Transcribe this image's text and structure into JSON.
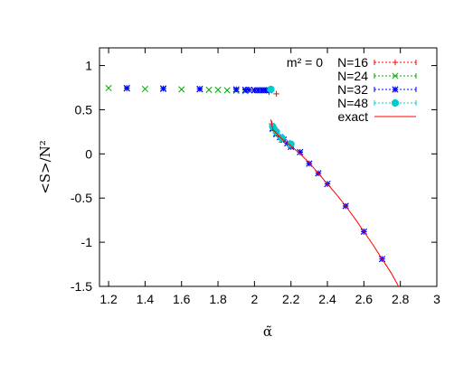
{
  "chart_data": {
    "type": "scatter",
    "xlabel": "α̃",
    "ylabel": "<S>/N²",
    "xlim": [
      1.15,
      3.0
    ],
    "ylim": [
      -1.5,
      1.2
    ],
    "x_ticks": [
      "1.2",
      "1.4",
      "1.6",
      "1.8",
      "2",
      "2.2",
      "2.4",
      "2.6",
      "2.8",
      "3"
    ],
    "x_tick_values": [
      1.2,
      1.4,
      1.6,
      1.8,
      2.0,
      2.2,
      2.4,
      2.6,
      2.8,
      3.0
    ],
    "y_ticks": [
      "1",
      "0.5",
      "0",
      "-0.5",
      "-1",
      "-1.5"
    ],
    "y_tick_values": [
      1,
      0.5,
      0,
      -0.5,
      -1,
      -1.5
    ],
    "legend_placement": "top-right",
    "legend_header": "m² = 0",
    "grid": false,
    "series": [
      {
        "name": "N=16",
        "marker": "plus",
        "color": "#ff0000",
        "points": [
          [
            2.05,
            0.72
          ],
          [
            2.08,
            0.7
          ],
          [
            2.12,
            0.68
          ],
          [
            2.095,
            0.34
          ],
          [
            2.11,
            0.3
          ]
        ]
      },
      {
        "name": "N=24",
        "marker": "x",
        "color": "#00aa00",
        "points": [
          [
            1.2,
            0.745
          ],
          [
            1.3,
            0.74
          ],
          [
            1.4,
            0.735
          ],
          [
            1.5,
            0.735
          ],
          [
            1.6,
            0.73
          ],
          [
            1.7,
            0.73
          ],
          [
            1.75,
            0.725
          ],
          [
            1.8,
            0.725
          ],
          [
            1.85,
            0.72
          ],
          [
            1.9,
            0.715
          ],
          [
            1.95,
            0.71
          ],
          [
            2.0,
            0.72
          ],
          [
            2.05,
            0.72
          ],
          [
            2.1,
            0.28
          ],
          [
            2.12,
            0.22
          ],
          [
            2.15,
            0.16
          ],
          [
            2.2,
            0.1
          ]
        ]
      },
      {
        "name": "N=32",
        "marker": "star",
        "color": "#0000ff",
        "points": [
          [
            1.3,
            0.745
          ],
          [
            1.5,
            0.74
          ],
          [
            1.7,
            0.735
          ],
          [
            1.9,
            0.73
          ],
          [
            1.95,
            0.725
          ],
          [
            1.97,
            0.725
          ],
          [
            2.0,
            0.72
          ],
          [
            2.02,
            0.72
          ],
          [
            2.04,
            0.72
          ],
          [
            2.06,
            0.72
          ],
          [
            2.08,
            0.72
          ],
          [
            2.1,
            0.29
          ],
          [
            2.12,
            0.23
          ],
          [
            2.14,
            0.19
          ],
          [
            2.16,
            0.16
          ],
          [
            2.18,
            0.12
          ],
          [
            2.2,
            0.08
          ],
          [
            2.25,
            0.02
          ],
          [
            2.3,
            -0.11
          ],
          [
            2.35,
            -0.22
          ],
          [
            2.4,
            -0.34
          ],
          [
            2.5,
            -0.59
          ],
          [
            2.6,
            -0.88
          ],
          [
            2.7,
            -1.19
          ]
        ]
      },
      {
        "name": "N=48",
        "marker": "dot",
        "color": "#00cccc",
        "points": [
          [
            2.09,
            0.73
          ],
          [
            2.1,
            0.31
          ],
          [
            2.12,
            0.25
          ],
          [
            2.15,
            0.18
          ],
          [
            2.2,
            0.11
          ]
        ]
      },
      {
        "name": "exact",
        "marker": "line",
        "color": "#ff0000",
        "points": [
          [
            2.09,
            0.39
          ],
          [
            2.1,
            0.28
          ],
          [
            2.15,
            0.17
          ],
          [
            2.2,
            0.09
          ],
          [
            2.25,
            0.0
          ],
          [
            2.3,
            -0.1
          ],
          [
            2.35,
            -0.22
          ],
          [
            2.4,
            -0.34
          ],
          [
            2.45,
            -0.46
          ],
          [
            2.5,
            -0.59
          ],
          [
            2.55,
            -0.73
          ],
          [
            2.6,
            -0.88
          ],
          [
            2.65,
            -1.03
          ],
          [
            2.7,
            -1.19
          ],
          [
            2.75,
            -1.35
          ],
          [
            2.79,
            -1.5
          ]
        ]
      }
    ]
  }
}
